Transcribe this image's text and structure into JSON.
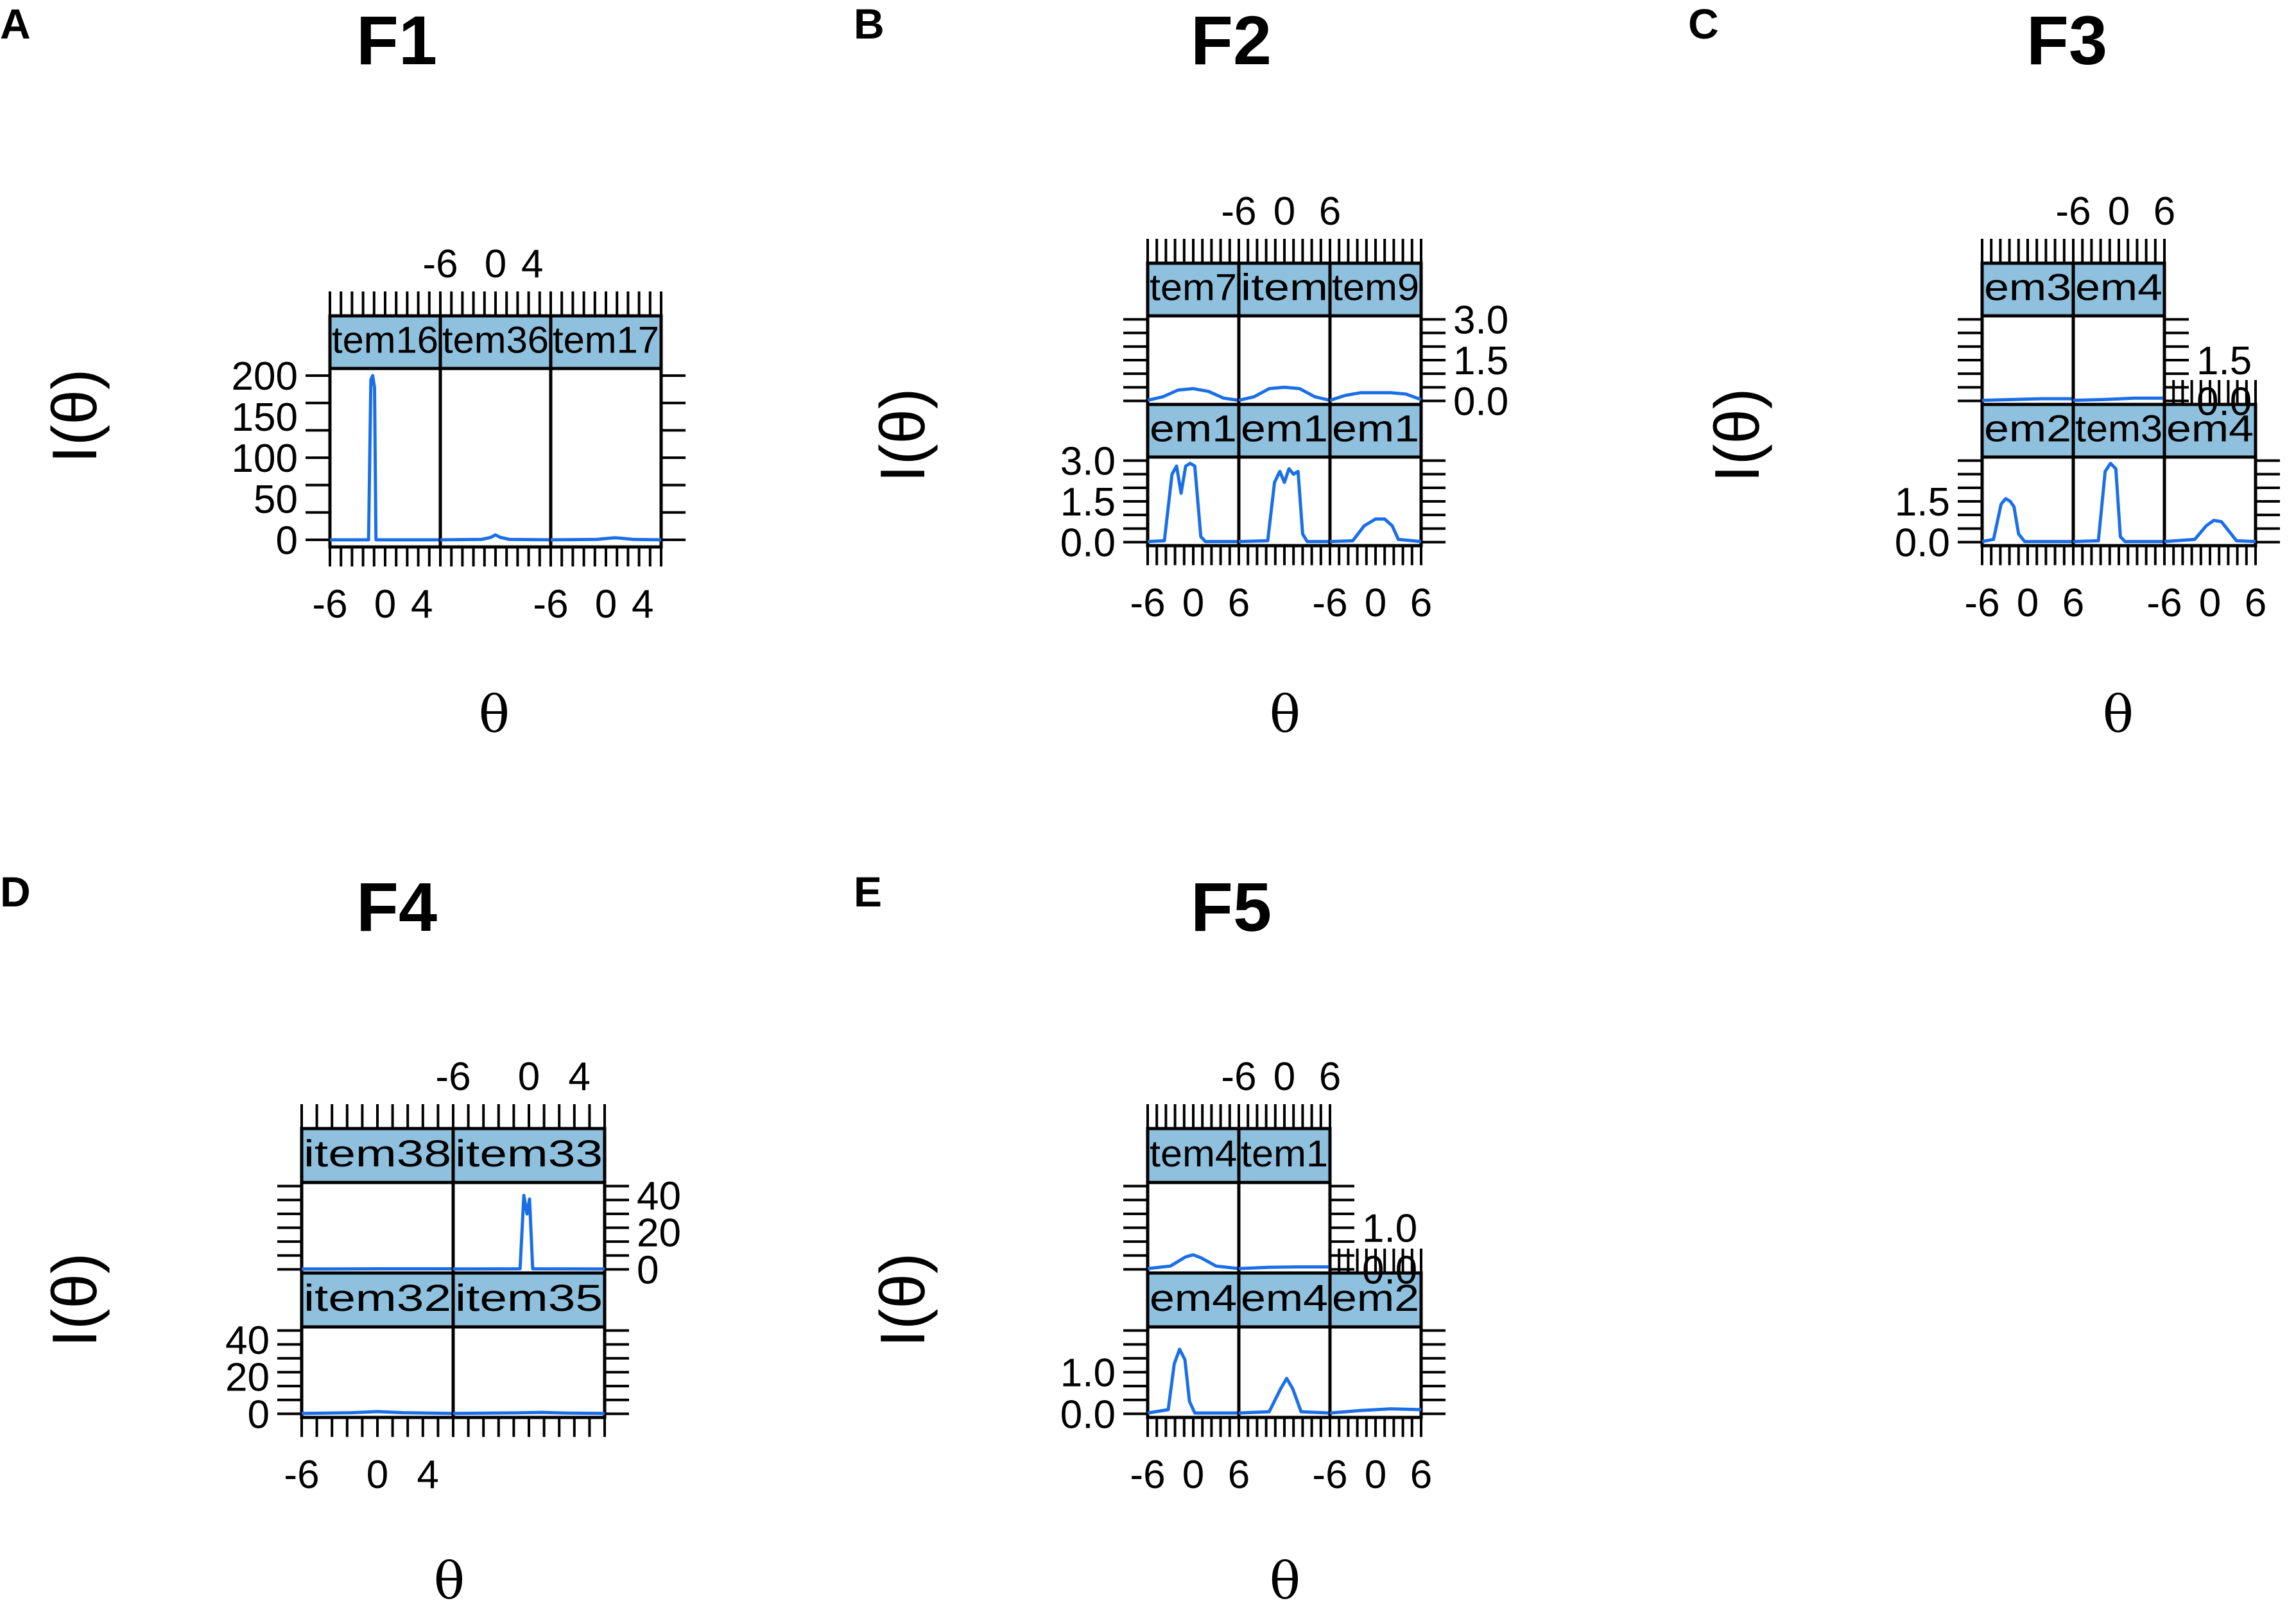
{
  "colors": {
    "curve": "#1a6fe8",
    "strip": "#8fc1de",
    "frame": "#000000"
  },
  "chart_data": [
    {
      "type": "line",
      "panel_letter": "A",
      "title": "F1",
      "ylabel": "I(θ)",
      "xlabel": "θ",
      "x_tick_labels": [
        "-6",
        "0",
        "4"
      ],
      "xlim": [
        -6,
        6
      ],
      "ylim": [
        0,
        200
      ],
      "y_ticks": [
        0,
        50,
        100,
        150,
        200
      ],
      "y_tick_labels": [
        "0",
        "50",
        "100",
        "150",
        "200"
      ],
      "strip_labels": [
        "tem16",
        "tem36",
        "tem17"
      ],
      "series": [
        {
          "name": "tem16",
          "points": [
            [
              -6,
              0
            ],
            [
              -1.8,
              0
            ],
            [
              -1.55,
              195
            ],
            [
              -1.35,
              200
            ],
            [
              -1.15,
              185
            ],
            [
              -1.0,
              0
            ],
            [
              6,
              0
            ]
          ]
        },
        {
          "name": "tem36",
          "points": [
            [
              -6,
              0
            ],
            [
              -1.5,
              0.5
            ],
            [
              -0.5,
              3
            ],
            [
              0,
              6
            ],
            [
              0.5,
              3
            ],
            [
              1.5,
              0.5
            ],
            [
              6,
              0
            ]
          ]
        },
        {
          "name": "tem17",
          "points": [
            [
              -6,
              0
            ],
            [
              -1,
              0.5
            ],
            [
              0.5,
              2
            ],
            [
              1,
              2.5
            ],
            [
              1.5,
              2
            ],
            [
              3,
              0.5
            ],
            [
              6,
              0
            ]
          ]
        }
      ]
    },
    {
      "type": "line",
      "panel_letter": "B",
      "title": "F2",
      "ylabel": "I(θ)",
      "xlabel": "θ",
      "x_tick_labels": [
        "-6",
        "0",
        "6"
      ],
      "xlim": [
        -6,
        6
      ],
      "ylim": [
        0,
        3
      ],
      "y_ticks": [
        0,
        1.5,
        3
      ],
      "y_tick_labels": [
        "0.0",
        "1.5",
        "3.0"
      ],
      "strip_labels": [
        "tem7",
        "item",
        "tem9",
        "em1",
        "em1",
        "em1"
      ],
      "series": [
        {
          "name": "tem7",
          "points": [
            [
              -6,
              0.02
            ],
            [
              -4,
              0.15
            ],
            [
              -2,
              0.4
            ],
            [
              0,
              0.45
            ],
            [
              2,
              0.35
            ],
            [
              4,
              0.1
            ],
            [
              6,
              0.02
            ]
          ]
        },
        {
          "name": "item",
          "points": [
            [
              -6,
              0.02
            ],
            [
              -4,
              0.15
            ],
            [
              -2,
              0.45
            ],
            [
              0,
              0.5
            ],
            [
              2,
              0.45
            ],
            [
              4,
              0.15
            ],
            [
              6,
              0.02
            ]
          ]
        },
        {
          "name": "tem9",
          "points": [
            [
              -6,
              0.02
            ],
            [
              -4,
              0.2
            ],
            [
              -2,
              0.3
            ],
            [
              0,
              0.3
            ],
            [
              2,
              0.3
            ],
            [
              4,
              0.25
            ],
            [
              6,
              0.05
            ]
          ]
        },
        {
          "name": "em1",
          "points": [
            [
              -6,
              0.02
            ],
            [
              -3.8,
              0.05
            ],
            [
              -2.8,
              2.5
            ],
            [
              -2.2,
              2.8
            ],
            [
              -1.6,
              1.8
            ],
            [
              -1.0,
              2.8
            ],
            [
              -0.4,
              2.9
            ],
            [
              0.2,
              2.8
            ],
            [
              1.0,
              0.2
            ],
            [
              1.6,
              0.02
            ],
            [
              6,
              0.02
            ]
          ]
        },
        {
          "name": "em1",
          "points": [
            [
              -6,
              0.02
            ],
            [
              -2.2,
              0.05
            ],
            [
              -1.3,
              2.2
            ],
            [
              -0.6,
              2.6
            ],
            [
              0,
              2.2
            ],
            [
              0.6,
              2.7
            ],
            [
              1.2,
              2.5
            ],
            [
              1.8,
              2.6
            ],
            [
              2.4,
              0.3
            ],
            [
              3,
              0.02
            ],
            [
              6,
              0.02
            ]
          ]
        },
        {
          "name": "em1",
          "points": [
            [
              -6,
              0.02
            ],
            [
              -3,
              0.05
            ],
            [
              -1.5,
              0.6
            ],
            [
              0,
              0.85
            ],
            [
              1.2,
              0.85
            ],
            [
              2.2,
              0.6
            ],
            [
              3,
              0.1
            ],
            [
              6,
              0.02
            ]
          ]
        }
      ]
    },
    {
      "type": "line",
      "panel_letter": "C",
      "title": "F3",
      "ylabel": "I(θ)",
      "xlabel": "θ",
      "x_tick_labels": [
        "-6",
        "0",
        "6"
      ],
      "xlim": [
        -6,
        6
      ],
      "ylim": [
        0,
        3
      ],
      "y_ticks": [
        0,
        1.5
      ],
      "y_tick_labels": [
        "0.0",
        "1.5"
      ],
      "strip_labels": [
        "em3",
        "em4",
        "em2",
        "tem3",
        "em4"
      ],
      "series": [
        {
          "name": "em3",
          "points": [
            [
              -6,
              0.02
            ],
            [
              -2,
              0.05
            ],
            [
              2,
              0.08
            ],
            [
              6,
              0.08
            ]
          ]
        },
        {
          "name": "em4",
          "points": [
            [
              -6,
              0.02
            ],
            [
              -2,
              0.05
            ],
            [
              2,
              0.1
            ],
            [
              6,
              0.1
            ]
          ]
        },
        {
          "name": "em2",
          "points": [
            [
              -6,
              0.02
            ],
            [
              -4.5,
              0.1
            ],
            [
              -3.5,
              1.4
            ],
            [
              -2.9,
              1.6
            ],
            [
              -2.3,
              1.5
            ],
            [
              -1.8,
              1.3
            ],
            [
              -1.2,
              0.3
            ],
            [
              -0.4,
              0.02
            ],
            [
              6,
              0.02
            ]
          ]
        },
        {
          "name": "tem3",
          "points": [
            [
              -6,
              0.02
            ],
            [
              -2.7,
              0.05
            ],
            [
              -1.8,
              2.6
            ],
            [
              -1.1,
              2.9
            ],
            [
              -0.4,
              2.7
            ],
            [
              0.2,
              0.2
            ],
            [
              0.8,
              0.02
            ],
            [
              6,
              0.02
            ]
          ]
        },
        {
          "name": "em4",
          "points": [
            [
              -6,
              0.02
            ],
            [
              -2,
              0.1
            ],
            [
              -0.5,
              0.6
            ],
            [
              0.5,
              0.8
            ],
            [
              1.5,
              0.75
            ],
            [
              2.5,
              0.4
            ],
            [
              3.5,
              0.05
            ],
            [
              6,
              0.02
            ]
          ]
        }
      ]
    },
    {
      "type": "line",
      "panel_letter": "D",
      "title": "F4",
      "ylabel": "I(θ)",
      "xlabel": "θ",
      "x_tick_labels": [
        "-6",
        "0",
        "4"
      ],
      "xlim": [
        -6,
        6
      ],
      "ylim": [
        0,
        45
      ],
      "y_ticks": [
        0,
        20,
        40
      ],
      "y_tick_labels": [
        "0",
        "20",
        "40"
      ],
      "strip_labels": [
        "item38",
        "item33",
        "item32",
        "item35"
      ],
      "series": [
        {
          "name": "item38",
          "points": [
            [
              -6,
              0.2
            ],
            [
              0,
              0.3
            ],
            [
              6,
              0.3
            ]
          ]
        },
        {
          "name": "item33",
          "points": [
            [
              -6,
              0.2
            ],
            [
              -0.7,
              0.3
            ],
            [
              -0.4,
              40
            ],
            [
              -0.15,
              30
            ],
            [
              0.05,
              38
            ],
            [
              0.3,
              0.3
            ],
            [
              6,
              0.2
            ]
          ]
        },
        {
          "name": "item32",
          "points": [
            [
              -6,
              0.2
            ],
            [
              -2,
              0.6
            ],
            [
              0,
              1.2
            ],
            [
              2,
              0.6
            ],
            [
              6,
              0.2
            ]
          ]
        },
        {
          "name": "item35",
          "points": [
            [
              -6,
              0.2
            ],
            [
              -1,
              0.5
            ],
            [
              1,
              0.8
            ],
            [
              3,
              0.4
            ],
            [
              6,
              0.2
            ]
          ]
        }
      ]
    },
    {
      "type": "line",
      "panel_letter": "E",
      "title": "F5",
      "ylabel": "I(θ)",
      "xlabel": "θ",
      "x_tick_labels": [
        "-6",
        "0",
        "6"
      ],
      "xlim": [
        -6,
        6
      ],
      "ylim": [
        0,
        2
      ],
      "y_ticks": [
        0,
        1
      ],
      "y_tick_labels": [
        "0.0",
        "1.0"
      ],
      "strip_labels": [
        "tem4",
        "tem1",
        "em4",
        "em4",
        "em2"
      ],
      "series": [
        {
          "name": "tem4",
          "points": [
            [
              -6,
              0.02
            ],
            [
              -3,
              0.08
            ],
            [
              -1,
              0.3
            ],
            [
              0,
              0.35
            ],
            [
              1,
              0.28
            ],
            [
              3,
              0.08
            ],
            [
              6,
              0.02
            ]
          ]
        },
        {
          "name": "tem1",
          "points": [
            [
              -6,
              0.02
            ],
            [
              -2,
              0.05
            ],
            [
              2,
              0.06
            ],
            [
              6,
              0.06
            ]
          ]
        },
        {
          "name": "em4",
          "points": [
            [
              -6,
              0.02
            ],
            [
              -3.3,
              0.1
            ],
            [
              -2.5,
              1.2
            ],
            [
              -1.8,
              1.55
            ],
            [
              -1.1,
              1.3
            ],
            [
              -0.5,
              0.3
            ],
            [
              0.2,
              0.02
            ],
            [
              6,
              0.02
            ]
          ]
        },
        {
          "name": "em4",
          "points": [
            [
              -6,
              0.02
            ],
            [
              -2,
              0.05
            ],
            [
              -0.5,
              0.6
            ],
            [
              0.3,
              0.85
            ],
            [
              1.1,
              0.6
            ],
            [
              2.2,
              0.05
            ],
            [
              6,
              0.02
            ]
          ]
        },
        {
          "name": "em2",
          "points": [
            [
              -6,
              0.02
            ],
            [
              -2,
              0.08
            ],
            [
              2,
              0.12
            ],
            [
              6,
              0.1
            ]
          ]
        }
      ]
    }
  ]
}
